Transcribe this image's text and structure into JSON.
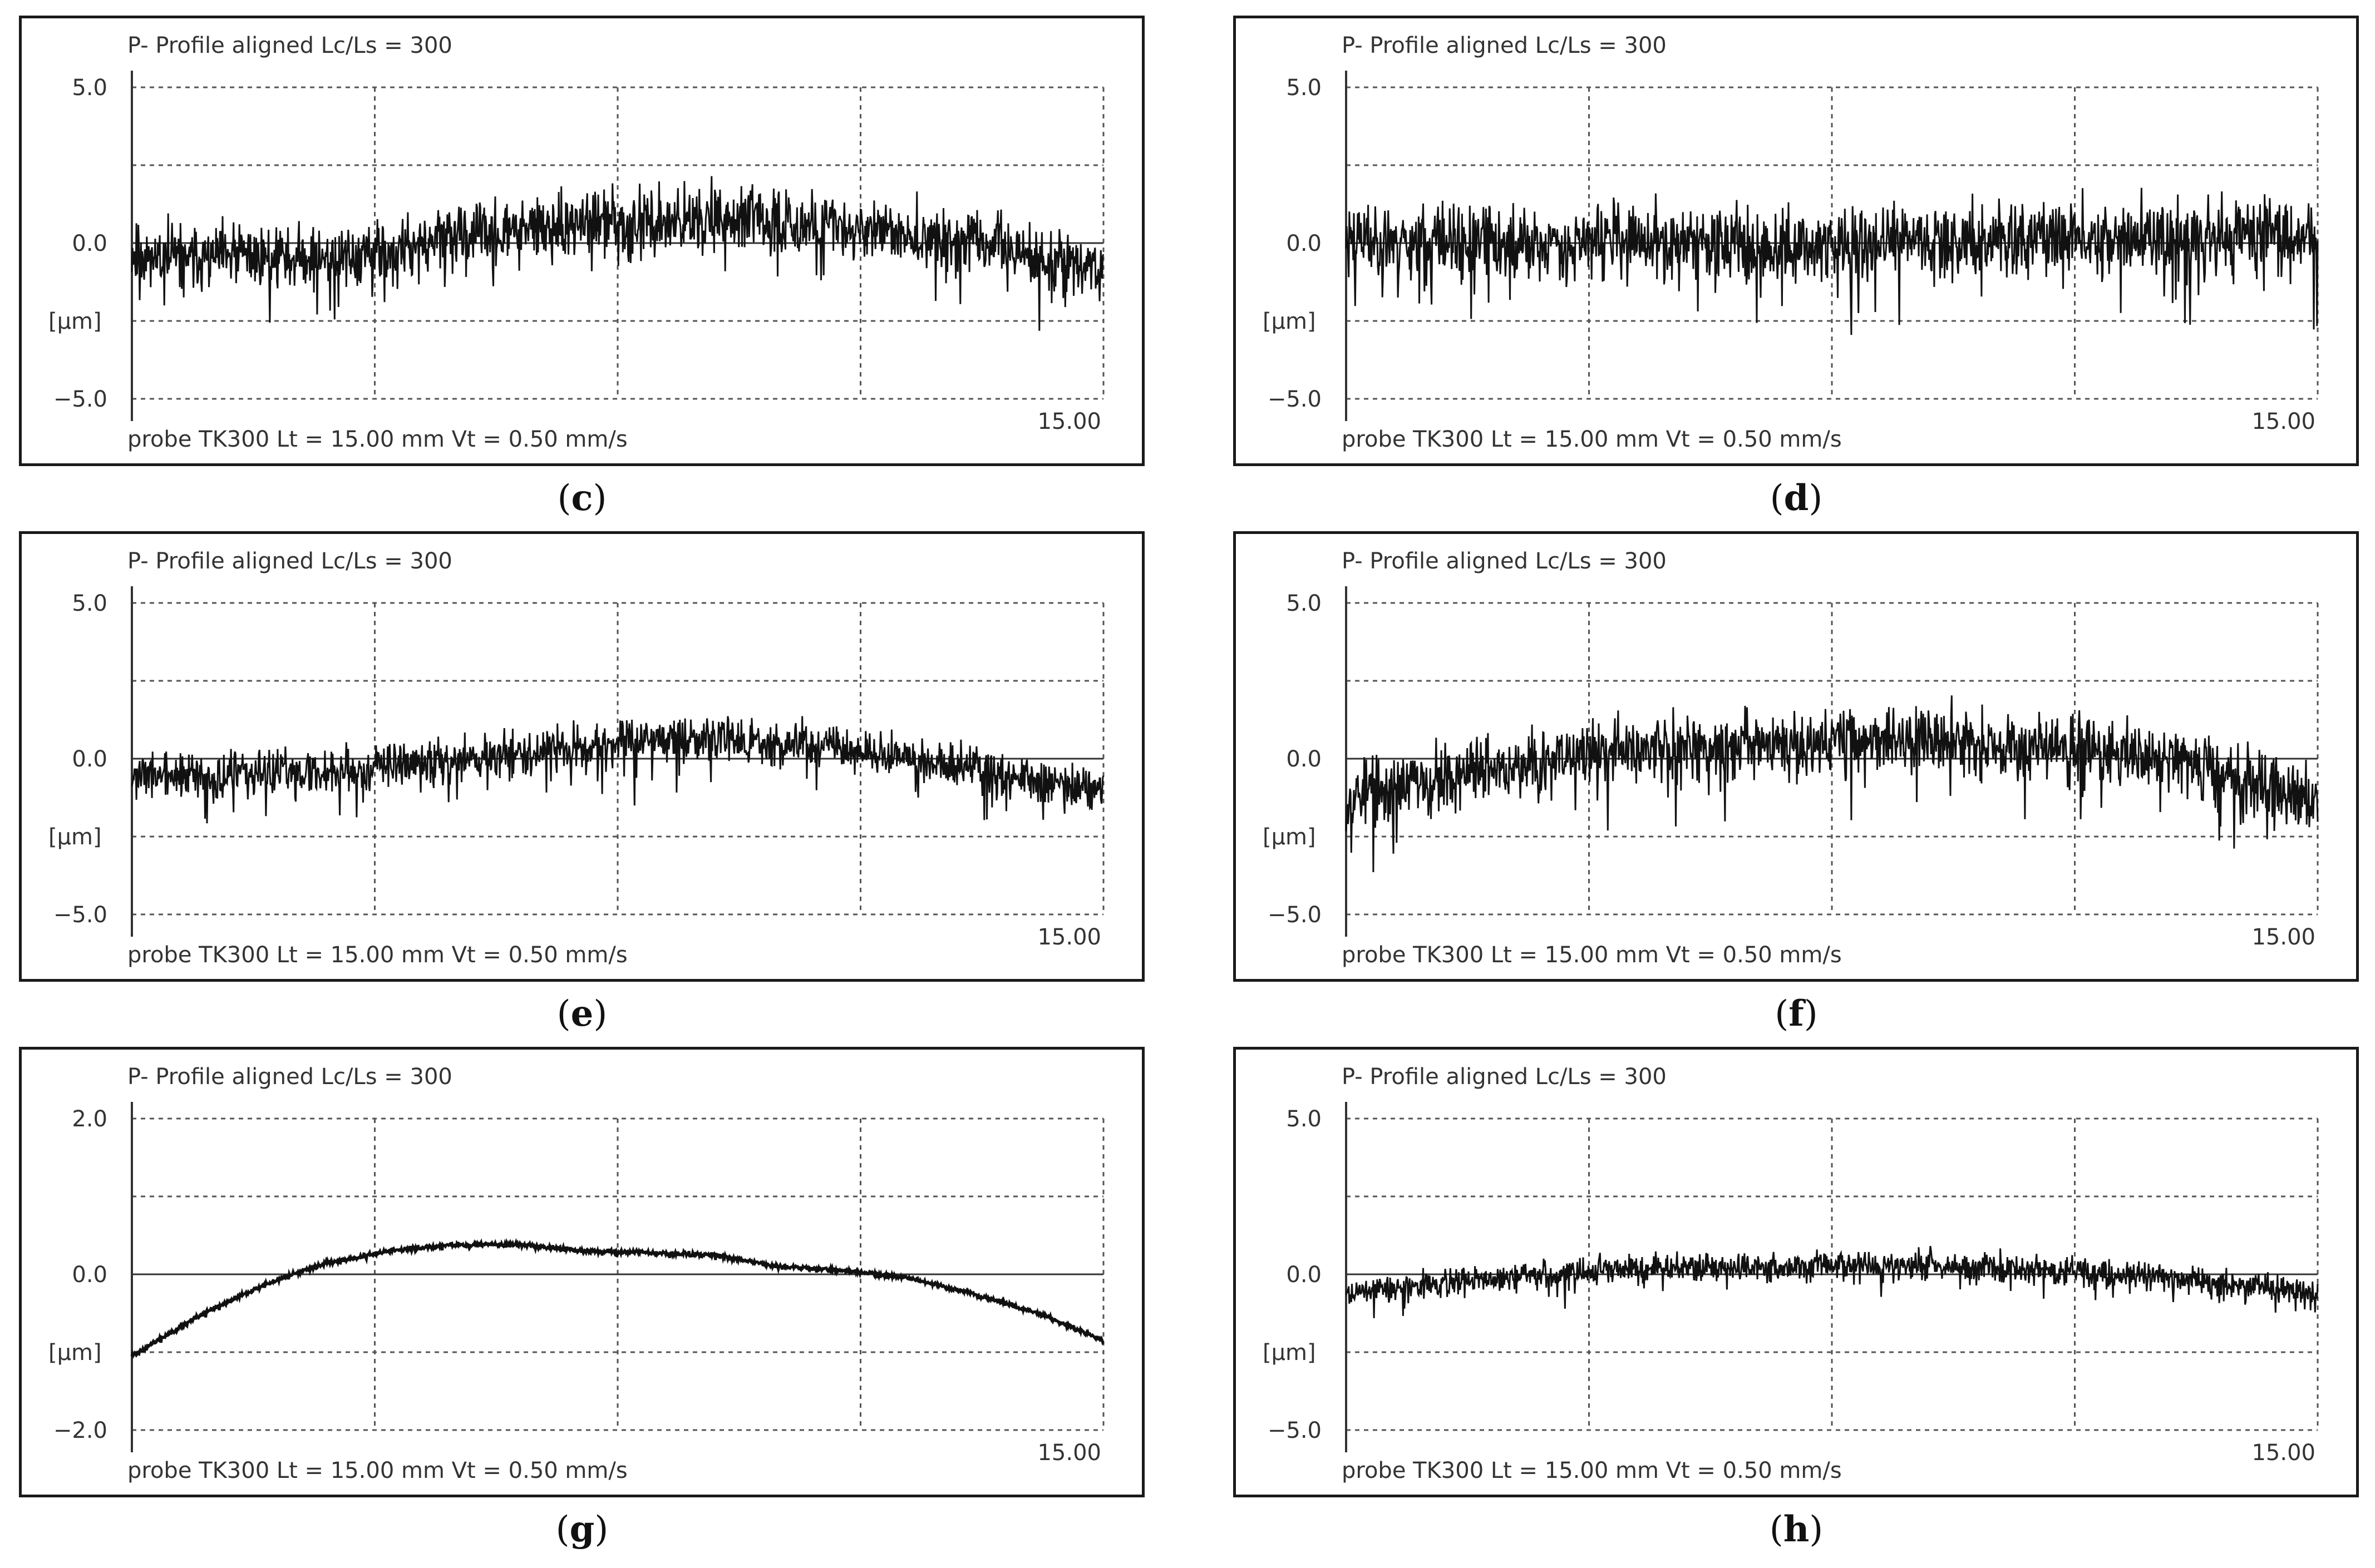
{
  "chart_data": [
    {
      "type": "line",
      "label": "c",
      "header": "P-  Profile  aligned  Lc/Ls = 300",
      "footer": "probe TK300   Lt = 15.00 mm   Vt = 0.50 mm/s",
      "x_end_label": "15.00",
      "ylabel": "[µm]",
      "yticks": [
        "5.0",
        "0.0",
        "−5.0"
      ],
      "ylim": [
        -5,
        5
      ],
      "xlim": [
        0,
        15
      ],
      "x": [
        0,
        1,
        2,
        3,
        4,
        5,
        6,
        7,
        8,
        9,
        10,
        11,
        12,
        13,
        14,
        15
      ],
      "y": [
        -0.3,
        -0.5,
        -0.4,
        -0.5,
        -0.3,
        0.2,
        0.4,
        0.6,
        0.7,
        0.8,
        0.7,
        0.5,
        0.3,
        0.0,
        -0.5,
        -1.0
      ],
      "amplitude": 1.1,
      "seed": 11
    },
    {
      "type": "line",
      "label": "d",
      "header": "P-  Profile  aligned  Lc/Ls = 300",
      "footer": "probe TK300   Lt = 15.00 mm   Vt = 0.50 mm/s",
      "x_end_label": "15.00",
      "ylabel": "[µm]",
      "yticks": [
        "5.0",
        "0.0",
        "−5.0"
      ],
      "ylim": [
        -5,
        5
      ],
      "xlim": [
        0,
        15
      ],
      "x": [
        0,
        1,
        2,
        3,
        4,
        5,
        6,
        7,
        8,
        9,
        10,
        11,
        12,
        13,
        14,
        15
      ],
      "y": [
        0.2,
        0.1,
        0.0,
        0.0,
        0.1,
        0.0,
        0.0,
        -0.1,
        0.0,
        0.1,
        0.1,
        0.2,
        0.2,
        0.2,
        0.3,
        0.2
      ],
      "amplitude": 1.3,
      "seed": 23
    },
    {
      "type": "line",
      "label": "e",
      "header": "P-  Profile  aligned  Lc/Ls = 300",
      "footer": "probe TK300   Lt = 15.00 mm   Vt = 0.50 mm/s",
      "x_end_label": "15.00",
      "ylabel": "[µm]",
      "yticks": [
        "5.0",
        "0.0",
        "−5.0"
      ],
      "ylim": [
        -5,
        5
      ],
      "xlim": [
        0,
        15
      ],
      "x": [
        0,
        1,
        2,
        3,
        4,
        5,
        6,
        7,
        8,
        9,
        10,
        11,
        12,
        13,
        14,
        15
      ],
      "y": [
        -0.5,
        -0.6,
        -0.5,
        -0.4,
        -0.2,
        0.0,
        0.2,
        0.4,
        0.6,
        0.6,
        0.5,
        0.3,
        0.0,
        -0.3,
        -0.7,
        -1.0
      ],
      "amplitude": 0.8,
      "seed": 37
    },
    {
      "type": "line",
      "label": "f",
      "header": "P-  Profile  aligned  Lc/Ls = 300",
      "footer": "probe TK300   Lt = 15.00 mm   Vt = 0.50 mm/s",
      "x_end_label": "15.00",
      "ylabel": "[µm]",
      "yticks": [
        "5.0",
        "0.0",
        "−5.0"
      ],
      "ylim": [
        -5,
        5
      ],
      "xlim": [
        0,
        15
      ],
      "x": [
        0,
        1,
        2,
        3,
        4,
        5,
        6,
        7,
        8,
        9,
        10,
        11,
        12,
        13,
        14,
        15
      ],
      "y": [
        -1.2,
        -0.8,
        -0.4,
        -0.1,
        0.2,
        0.4,
        0.5,
        0.6,
        0.6,
        0.6,
        0.5,
        0.4,
        0.2,
        -0.2,
        -0.8,
        -1.3
      ],
      "amplitude": 1.2,
      "seed": 53
    },
    {
      "type": "line",
      "label": "g",
      "header": "P-  Profile  aligned  Lc/Ls = 300",
      "footer": "probe TK300   Lt = 15.00 mm   Vt = 0.50 mm/s",
      "x_end_label": "15.00",
      "ylabel": "[µm]",
      "yticks": [
        "2.0",
        "0.0",
        "−2.0"
      ],
      "ylim": [
        -2,
        2
      ],
      "xlim": [
        0,
        15
      ],
      "x": [
        0,
        1,
        2,
        3,
        4,
        5,
        6,
        7,
        8,
        9,
        10,
        11,
        12,
        13,
        14,
        15
      ],
      "y": [
        -1.05,
        -0.55,
        -0.15,
        0.15,
        0.3,
        0.38,
        0.38,
        0.3,
        0.28,
        0.25,
        0.1,
        0.05,
        -0.05,
        -0.25,
        -0.5,
        -0.85
      ],
      "amplitude": 0.03,
      "seed": 71
    },
    {
      "type": "line",
      "label": "h",
      "header": "P-  Profile  aligned  Lc/Ls = 300",
      "footer": "probe TK300   Lt = 15.00 mm   Vt = 0.50 mm/s",
      "x_end_label": "15.00",
      "ylabel": "[µm]",
      "yticks": [
        "5.0",
        "0.0",
        "−5.0"
      ],
      "ylim": [
        -5,
        5
      ],
      "xlim": [
        0,
        15
      ],
      "x": [
        0,
        1,
        2,
        3,
        4,
        5,
        6,
        7,
        8,
        9,
        10,
        11,
        12,
        13,
        14,
        15
      ],
      "y": [
        -0.6,
        -0.4,
        -0.2,
        0.0,
        0.1,
        0.2,
        0.2,
        0.3,
        0.3,
        0.3,
        0.2,
        0.1,
        0.0,
        -0.2,
        -0.4,
        -0.7
      ],
      "amplitude": 0.5,
      "seed": 89
    }
  ],
  "captions": {
    "c": "c",
    "d": "d",
    "e": "e",
    "f": "f",
    "g": "g",
    "h": "h"
  }
}
